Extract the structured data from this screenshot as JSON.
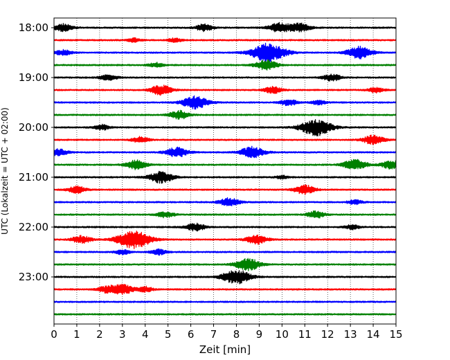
{
  "chart_data": {
    "type": "line",
    "title": "",
    "xlabel": "Zeit  [min]",
    "ylabel": "UTC (Lokalzeit = UTC + 02:00)",
    "xlim": [
      0,
      15
    ],
    "x_ticks": [
      "0",
      "1",
      "2",
      "3",
      "4",
      "5",
      "6",
      "7",
      "8",
      "9",
      "10",
      "11",
      "12",
      "13",
      "14",
      "15"
    ],
    "y_ticks": [
      "18:00",
      "19:00",
      "20:00",
      "21:00",
      "22:00",
      "23:00"
    ],
    "trace_interval_min": 15,
    "traces": [
      {
        "start": "18:00",
        "color": "#000000",
        "events": [
          [
            0.4,
            1
          ],
          [
            6.6,
            0.9
          ],
          [
            9.9,
            1.3
          ],
          [
            10.8,
            1.1
          ]
        ]
      },
      {
        "start": "18:15",
        "color": "#ff0000",
        "events": [
          [
            3.5,
            0.5
          ],
          [
            5.3,
            0.5
          ]
        ]
      },
      {
        "start": "18:30",
        "color": "#0000ff",
        "events": [
          [
            0.4,
            0.7
          ],
          [
            9.4,
            2.5
          ],
          [
            13.4,
            1.6
          ]
        ]
      },
      {
        "start": "18:45",
        "color": "#008000",
        "events": [
          [
            4.5,
            0.6
          ],
          [
            9.3,
            1.3
          ]
        ]
      },
      {
        "start": "19:00",
        "color": "#000000",
        "events": [
          [
            2.4,
            0.8
          ],
          [
            12.2,
            0.9
          ]
        ]
      },
      {
        "start": "19:15",
        "color": "#ff0000",
        "events": [
          [
            4.7,
            1.3
          ],
          [
            9.6,
            0.9
          ],
          [
            14.1,
            0.7
          ]
        ]
      },
      {
        "start": "19:30",
        "color": "#0000ff",
        "events": [
          [
            6.2,
            1.7
          ],
          [
            10.3,
            0.8
          ],
          [
            11.6,
            0.6
          ]
        ]
      },
      {
        "start": "19:45",
        "color": "#008000",
        "events": [
          [
            5.5,
            1.1
          ]
        ]
      },
      {
        "start": "20:00",
        "color": "#000000",
        "events": [
          [
            2.1,
            0.7
          ],
          [
            11.5,
            2.2
          ]
        ]
      },
      {
        "start": "20:15",
        "color": "#ff0000",
        "events": [
          [
            3.8,
            0.8
          ],
          [
            14.0,
            1.2
          ]
        ]
      },
      {
        "start": "20:30",
        "color": "#0000ff",
        "events": [
          [
            0.2,
            0.9
          ],
          [
            5.4,
            1.3
          ],
          [
            8.7,
            1.5
          ]
        ]
      },
      {
        "start": "20:45",
        "color": "#008000",
        "events": [
          [
            3.6,
            1.2
          ],
          [
            13.2,
            1.4
          ],
          [
            14.8,
            1.1
          ]
        ]
      },
      {
        "start": "21:00",
        "color": "#000000",
        "events": [
          [
            4.7,
            1.5
          ],
          [
            10.0,
            0.4
          ]
        ]
      },
      {
        "start": "21:15",
        "color": "#ff0000",
        "events": [
          [
            1.0,
            0.9
          ],
          [
            11.0,
            1.2
          ]
        ]
      },
      {
        "start": "21:30",
        "color": "#0000ff",
        "events": [
          [
            7.7,
            1.1
          ],
          [
            13.2,
            0.6
          ]
        ]
      },
      {
        "start": "21:45",
        "color": "#008000",
        "events": [
          [
            4.9,
            0.8
          ],
          [
            11.5,
            0.9
          ]
        ]
      },
      {
        "start": "22:00",
        "color": "#000000",
        "events": [
          [
            6.2,
            1.0
          ],
          [
            13.1,
            0.6
          ]
        ]
      },
      {
        "start": "22:15",
        "color": "#ff0000",
        "events": [
          [
            1.2,
            1.0
          ],
          [
            3.5,
            2.4
          ],
          [
            8.9,
            1.2
          ]
        ]
      },
      {
        "start": "22:30",
        "color": "#0000ff",
        "events": [
          [
            3.0,
            0.6
          ],
          [
            4.6,
            0.7
          ]
        ]
      },
      {
        "start": "22:45",
        "color": "#008000",
        "events": [
          [
            8.5,
            1.6
          ]
        ]
      },
      {
        "start": "23:00",
        "color": "#000000",
        "events": [
          [
            8.0,
            1.9
          ]
        ]
      },
      {
        "start": "23:15",
        "color": "#ff0000",
        "events": [
          [
            2.3,
            0.8
          ],
          [
            3.0,
            1.3
          ],
          [
            4.0,
            0.7
          ]
        ]
      },
      {
        "start": "23:30",
        "color": "#0000ff",
        "events": []
      },
      {
        "start": "23:45",
        "color": "#008000",
        "events": []
      }
    ],
    "grid": "vertical dotted",
    "legend": "none"
  }
}
